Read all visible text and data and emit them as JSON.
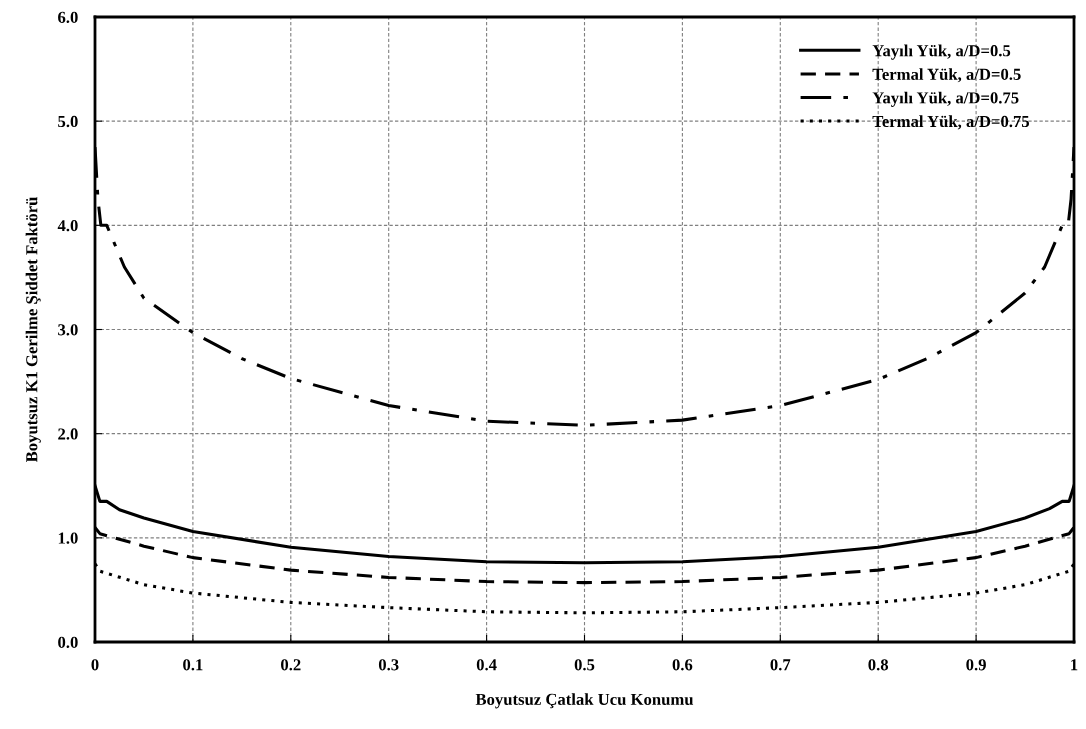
{
  "chart_data": {
    "type": "line",
    "xlabel": "Boyutsuz Çatlak Ucu Konumu",
    "ylabel": "Boyutsuz K1 Gerilme Şiddet Faktörü",
    "xlim": [
      0,
      1
    ],
    "xticks": [
      0,
      0.1,
      0.2,
      0.3,
      0.4,
      0.5,
      0.6,
      0.7,
      0.8,
      0.9,
      1
    ],
    "ylim": [
      0,
      6
    ],
    "yticks": [
      {
        "value": 0,
        "label": "0.0"
      },
      {
        "value": 1,
        "label": "1.0"
      },
      {
        "value": 2,
        "label": "2.0"
      },
      {
        "value": 3,
        "label": "3.0"
      },
      {
        "value": 4,
        "label": "4.0"
      },
      {
        "value": 5,
        "label": "5.0"
      },
      {
        "value": 6,
        "label": "6.0"
      }
    ],
    "grid": true,
    "legend": "top right",
    "marker": "none",
    "series": [
      {
        "name": "Yayılı Yük, a/D=0.5",
        "color": "#000000",
        "line_style": "solid",
        "x": [
          0,
          0.005,
          0.012,
          0.025,
          0.05,
          0.1,
          0.2,
          0.3,
          0.4,
          0.5,
          0.6,
          0.7,
          0.8,
          0.9,
          0.95,
          0.975,
          0.988,
          0.995,
          1
        ],
        "values": [
          1.5,
          1.35,
          1.35,
          1.27,
          1.19,
          1.06,
          0.91,
          0.82,
          0.77,
          0.76,
          0.77,
          0.82,
          0.91,
          1.06,
          1.19,
          1.28,
          1.35,
          1.35,
          1.5
        ]
      },
      {
        "name": "Termal Yük, a/D=0.5",
        "color": "#000000",
        "line_style": "dashed",
        "x": [
          0,
          0.005,
          0.05,
          0.1,
          0.2,
          0.3,
          0.4,
          0.5,
          0.6,
          0.7,
          0.8,
          0.9,
          0.95,
          0.995,
          1
        ],
        "values": [
          1.1,
          1.04,
          0.92,
          0.81,
          0.69,
          0.62,
          0.58,
          0.57,
          0.58,
          0.62,
          0.69,
          0.81,
          0.92,
          1.04,
          1.1
        ]
      },
      {
        "name": "Yayılı Yük, a/D=0.75",
        "color": "#000000",
        "line_style": "dashdot",
        "x": [
          0,
          0.003,
          0.006,
          0.012,
          0.03,
          0.05,
          0.1,
          0.15,
          0.2,
          0.3,
          0.4,
          0.5,
          0.6,
          0.7,
          0.8,
          0.85,
          0.9,
          0.95,
          0.97,
          0.988,
          0.994,
          0.997,
          1
        ],
        "values": [
          4.75,
          4.25,
          4.0,
          4.0,
          3.6,
          3.3,
          2.97,
          2.72,
          2.53,
          2.27,
          2.12,
          2.08,
          2.13,
          2.27,
          2.52,
          2.72,
          2.97,
          3.35,
          3.6,
          4.0,
          4.0,
          4.25,
          4.75
        ]
      },
      {
        "name": "Termal Yük, a/D=0.75",
        "color": "#000000",
        "line_style": "dotted",
        "x": [
          0,
          0.005,
          0.05,
          0.1,
          0.2,
          0.3,
          0.4,
          0.5,
          0.6,
          0.7,
          0.8,
          0.9,
          0.95,
          0.995,
          1
        ],
        "values": [
          0.75,
          0.68,
          0.55,
          0.47,
          0.38,
          0.33,
          0.29,
          0.28,
          0.29,
          0.33,
          0.38,
          0.47,
          0.55,
          0.68,
          0.75
        ]
      }
    ]
  }
}
